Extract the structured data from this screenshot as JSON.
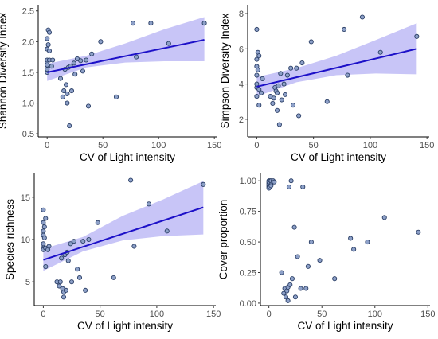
{
  "colors": {
    "point_fill": "#8da0c8",
    "point_stroke": "#2b3f66",
    "fit_line": "#1c10c8",
    "ribbon": "#9b96f0"
  },
  "chart_data": [
    {
      "type": "scatter",
      "xlabel": "CV of Light intensity",
      "ylabel": "Shannon Diversity Index",
      "xlim": [
        -8,
        152
      ],
      "ylim": [
        0.45,
        2.6
      ],
      "xticks": [
        0,
        50,
        100,
        150
      ],
      "xtick_labels": [
        "0",
        "50",
        "100",
        "150"
      ],
      "yticks": [
        0.5,
        1.0,
        1.5,
        2.0,
        2.5
      ],
      "ytick_labels": [
        "0.5",
        "1.0",
        "1.5",
        "2.0",
        "2.5"
      ],
      "x": [
        0,
        0,
        0,
        0,
        0,
        0,
        0,
        1,
        1,
        2,
        2,
        2,
        4,
        5,
        12,
        14,
        15,
        16,
        17,
        18,
        18,
        19,
        20,
        21,
        22,
        24,
        25,
        27,
        30,
        32,
        35,
        37,
        40,
        48,
        62,
        77,
        80,
        93,
        109,
        141
      ],
      "y": [
        1.5,
        1.55,
        1.62,
        1.67,
        1.7,
        1.88,
        2.05,
        1.95,
        2.19,
        2.15,
        1.85,
        1.7,
        1.6,
        1.7,
        1.4,
        1.1,
        1.2,
        1.55,
        1.3,
        1.15,
        1.0,
        1.58,
        0.63,
        1.6,
        1.2,
        1.65,
        1.47,
        1.72,
        1.69,
        1.52,
        1.7,
        0.95,
        1.8,
        2.0,
        1.1,
        2.3,
        1.75,
        2.3,
        1.97,
        2.3
      ],
      "fit": {
        "x": [
          0,
          141
        ],
        "y": [
          1.5,
          2.03
        ]
      },
      "ci": {
        "x": [
          0,
          35,
          70,
          105,
          141
        ],
        "lower": [
          1.36,
          1.58,
          1.66,
          1.68,
          1.68
        ],
        "upper": [
          1.64,
          1.77,
          1.97,
          2.2,
          2.4
        ]
      }
    },
    {
      "type": "scatter",
      "xlabel": "CV of Light intensity",
      "ylabel": "Simpson Diversity Index",
      "xlim": [
        -8,
        152
      ],
      "ylim": [
        1.0,
        8.5
      ],
      "xticks": [
        0,
        50,
        100,
        150
      ],
      "xtick_labels": [
        "0",
        "50",
        "100",
        "150"
      ],
      "yticks": [
        2,
        4,
        6,
        8
      ],
      "ytick_labels": [
        "2",
        "4",
        "6",
        "8"
      ],
      "x": [
        0,
        0,
        0,
        0,
        0,
        0,
        0,
        1,
        1,
        2,
        2,
        2,
        4,
        5,
        12,
        14,
        15,
        16,
        17,
        18,
        18,
        19,
        20,
        21,
        22,
        24,
        25,
        27,
        30,
        32,
        35,
        37,
        40,
        48,
        62,
        77,
        80,
        93,
        109,
        141
      ],
      "y": [
        3.8,
        4.0,
        4.5,
        5.0,
        5.4,
        7.1,
        3.3,
        4.8,
        5.8,
        5.6,
        3.7,
        2.8,
        3.5,
        4.3,
        3.3,
        2.9,
        3.2,
        3.8,
        3.6,
        3.5,
        2.5,
        3.9,
        1.7,
        4.6,
        3.1,
        4.0,
        3.4,
        4.5,
        4.9,
        2.8,
        4.9,
        2.2,
        5.2,
        6.4,
        3.0,
        7.1,
        4.5,
        7.8,
        5.8,
        6.7
      ],
      "fit": {
        "x": [
          0,
          141
        ],
        "y": [
          3.85,
          6.0
        ]
      },
      "ci": {
        "x": [
          0,
          35,
          70,
          105,
          141
        ],
        "lower": [
          3.3,
          4.1,
          4.5,
          4.6,
          4.55
        ],
        "upper": [
          4.4,
          4.9,
          5.6,
          6.5,
          7.45
        ]
      }
    },
    {
      "type": "scatter",
      "xlabel": "CV of Light intensity",
      "ylabel": "Species richness",
      "xlim": [
        -8,
        152
      ],
      "ylim": [
        2.2,
        17.8
      ],
      "xticks": [
        0,
        50,
        100,
        150
      ],
      "xtick_labels": [
        "0",
        "50",
        "100",
        "150"
      ],
      "yticks": [
        5,
        10,
        15
      ],
      "ytick_labels": [
        "5",
        "10",
        "15"
      ],
      "x": [
        0,
        0,
        0,
        0,
        0,
        0,
        0,
        1,
        1,
        2,
        2,
        2,
        4,
        5,
        12,
        14,
        15,
        16,
        17,
        18,
        18,
        19,
        20,
        21,
        22,
        24,
        25,
        27,
        30,
        32,
        35,
        37,
        40,
        48,
        62,
        77,
        80,
        93,
        109,
        141
      ],
      "y": [
        9.0,
        9.5,
        10.5,
        11.0,
        12.0,
        13.5,
        8.8,
        10.2,
        11.5,
        12.5,
        9.0,
        6.8,
        8.8,
        9.2,
        5.0,
        4.5,
        5.0,
        7.8,
        4.2,
        3.8,
        3.2,
        8.2,
        4.0,
        8.5,
        7.5,
        9.5,
        5.0,
        9.8,
        6.5,
        5.5,
        9.8,
        4.0,
        10.0,
        12.0,
        5.5,
        17.0,
        9.2,
        14.2,
        11.0,
        16.5
      ],
      "fit": {
        "x": [
          0,
          141
        ],
        "y": [
          7.6,
          13.8
        ]
      },
      "ci": {
        "x": [
          0,
          35,
          70,
          105,
          141
        ],
        "lower": [
          6.3,
          8.6,
          9.9,
          10.4,
          10.6
        ],
        "upper": [
          8.9,
          10.3,
          12.8,
          14.7,
          16.9
        ]
      }
    },
    {
      "type": "scatter",
      "xlabel": "CV of Light intensity",
      "ylabel": "Cover proportion",
      "xlim": [
        -8,
        152
      ],
      "ylim": [
        -0.02,
        1.06
      ],
      "xticks": [
        0,
        50,
        100,
        150
      ],
      "xtick_labels": [
        "0",
        "50",
        "100",
        "150"
      ],
      "yticks": [
        0.0,
        0.25,
        0.5,
        0.75,
        1.0
      ],
      "ytick_labels": [
        "0.00",
        "0.25",
        "0.50",
        "0.75",
        "1.00"
      ],
      "x": [
        0,
        0,
        0,
        0,
        0,
        0,
        0,
        1,
        1,
        1,
        2,
        2,
        2,
        4,
        5,
        12,
        14,
        15,
        16,
        17,
        18,
        18,
        19,
        20,
        21,
        22,
        24,
        25,
        27,
        30,
        32,
        35,
        37,
        40,
        48,
        62,
        77,
        80,
        93,
        109,
        141
      ],
      "y": [
        1.0,
        0.98,
        0.96,
        0.95,
        0.99,
        0.97,
        0.94,
        1.0,
        0.98,
        0.95,
        1.0,
        0.97,
        0.96,
        1.0,
        0.99,
        0.25,
        0.08,
        0.12,
        0.05,
        0.1,
        0.13,
        0.02,
        0.95,
        0.15,
        1.0,
        0.2,
        0.62,
        0.05,
        0.38,
        0.12,
        0.95,
        0.12,
        0.3,
        0.5,
        0.35,
        0.2,
        0.53,
        0.44,
        0.5,
        0.7,
        0.58
      ]
    }
  ]
}
